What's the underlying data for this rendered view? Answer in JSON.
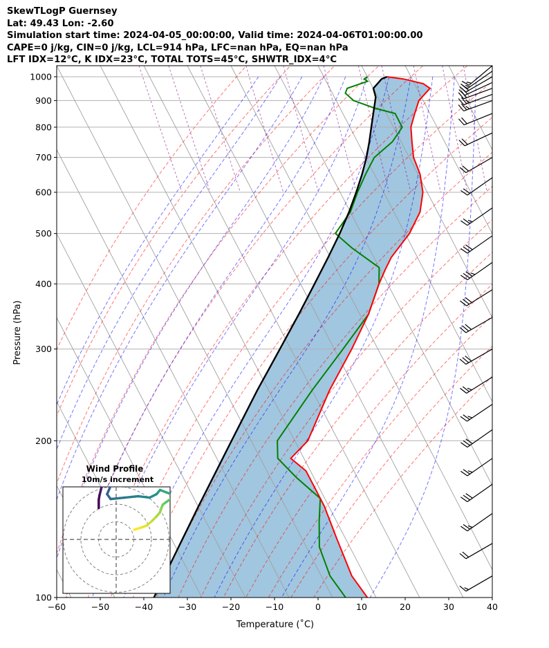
{
  "header": {
    "line1": "SkewTLogP Guernsey",
    "line2": "Lat: 49.43   Lon: -2.60",
    "line3": "Simulation start time: 2024-04-05_00:00:00, Valid time: 2024-04-06T01:00:00.00",
    "line4": "CAPE=0 j/kg, CIN=0 j/kg, LCL=914 hPa, LFC=nan hPa, EQ=nan hPa",
    "line5": "LFT IDX=12$^\\circ$C, K IDX=23$^\\circ$C, TOTAL TOTS=45$^\\circ$C, SHWTR_IDX=4$^\\circ$C",
    "line5_display": "LFT IDX=12°C, K IDX=23°C, TOTAL TOTS=45°C, SHWTR_IDX=4°C"
  },
  "colors": {
    "temperature": "#ff0000",
    "dewpoint": "#008000",
    "parcel": "#000000",
    "fill": "#a1c6df",
    "dry_adiabat": "#ff0000",
    "moist_adiabat": "#0000ff",
    "mixing_ratio": "#800080",
    "isotherm": "#999999"
  },
  "chart_data": {
    "type": "skewt",
    "xlabel": "Temperature ($^\\circ$C)",
    "xlabel_display": "Temperature (˚C)",
    "ylabel": "Pressure (hPa)",
    "xlim": [
      -60,
      40
    ],
    "ylim": [
      1050,
      100
    ],
    "xticks": [
      -60,
      -50,
      -40,
      -30,
      -20,
      -10,
      0,
      10,
      20,
      30,
      40
    ],
    "yticks": [
      1000,
      900,
      800,
      700,
      600,
      500,
      400,
      300,
      200,
      100
    ],
    "skew_deg_per_decade": 62,
    "temperature": [
      [
        1000,
        14.5
      ],
      [
        990,
        18
      ],
      [
        970,
        22
      ],
      [
        950,
        23
      ],
      [
        900,
        19
      ],
      [
        850,
        16.5
      ],
      [
        800,
        14
      ],
      [
        750,
        12.5
      ],
      [
        700,
        11
      ],
      [
        650,
        10.5
      ],
      [
        600,
        9
      ],
      [
        550,
        6
      ],
      [
        500,
        1
      ],
      [
        450,
        -6
      ],
      [
        425,
        -9
      ],
      [
        400,
        -12
      ],
      [
        350,
        -18
      ],
      [
        300,
        -26
      ],
      [
        250,
        -36
      ],
      [
        200,
        -47
      ],
      [
        185,
        -53
      ],
      [
        175,
        -51
      ],
      [
        150,
        -51
      ],
      [
        130,
        -52
      ],
      [
        110,
        -53
      ],
      [
        100,
        -52
      ]
    ],
    "dewpoint": [
      [
        1000,
        10
      ],
      [
        990,
        9
      ],
      [
        980,
        9.5
      ],
      [
        950,
        4
      ],
      [
        930,
        3
      ],
      [
        900,
        4
      ],
      [
        870,
        8
      ],
      [
        850,
        12
      ],
      [
        800,
        12
      ],
      [
        750,
        8
      ],
      [
        700,
        2
      ],
      [
        650,
        -2
      ],
      [
        600,
        -6
      ],
      [
        550,
        -10
      ],
      [
        500,
        -16
      ],
      [
        470,
        -14
      ],
      [
        430,
        -10
      ],
      [
        400,
        -12
      ],
      [
        350,
        -18
      ],
      [
        300,
        -28
      ],
      [
        250,
        -40
      ],
      [
        200,
        -54
      ],
      [
        185,
        -56
      ],
      [
        170,
        -54
      ],
      [
        155,
        -51
      ],
      [
        140,
        -54
      ],
      [
        125,
        -57
      ],
      [
        110,
        -58
      ],
      [
        100,
        -57
      ]
    ],
    "parcel": [
      [
        1000,
        14.5
      ],
      [
        990,
        13
      ],
      [
        950,
        10
      ],
      [
        914,
        9.5
      ],
      [
        850,
        7
      ],
      [
        800,
        4.9
      ],
      [
        750,
        2.7
      ],
      [
        700,
        0.2
      ],
      [
        650,
        -2.8
      ],
      [
        600,
        -6.3
      ],
      [
        550,
        -10.3
      ],
      [
        500,
        -15
      ],
      [
        450,
        -20.5
      ],
      [
        400,
        -26.8
      ],
      [
        350,
        -34
      ],
      [
        300,
        -42.5
      ],
      [
        250,
        -52.6
      ],
      [
        200,
        -64.5
      ],
      [
        150,
        -79.8
      ],
      [
        100,
        -101
      ]
    ],
    "dry_adiabats_theta_C": [
      -20,
      -10,
      0,
      10,
      20,
      30,
      40,
      50,
      60,
      70,
      80,
      90,
      100,
      110,
      120,
      130
    ],
    "moist_adiabats_start_C": [
      -15,
      -10,
      -5,
      0,
      5,
      10,
      15,
      20,
      25,
      30,
      35
    ],
    "mixing_ratios_g_per_kg": [
      0.1,
      0.2,
      0.4,
      1,
      2,
      4,
      7,
      10,
      16,
      24,
      32
    ],
    "wind_barbs": [
      {
        "p": 1050,
        "speed_kt": 15,
        "dir_deg": 230
      },
      {
        "p": 1025,
        "speed_kt": 15,
        "dir_deg": 235
      },
      {
        "p": 1000,
        "speed_kt": 20,
        "dir_deg": 240
      },
      {
        "p": 975,
        "speed_kt": 20,
        "dir_deg": 245
      },
      {
        "p": 950,
        "speed_kt": 20,
        "dir_deg": 250
      },
      {
        "p": 925,
        "speed_kt": 25,
        "dir_deg": 250
      },
      {
        "p": 900,
        "speed_kt": 25,
        "dir_deg": 250
      },
      {
        "p": 850,
        "speed_kt": 20,
        "dir_deg": 248
      },
      {
        "p": 780,
        "speed_kt": 20,
        "dir_deg": 245
      },
      {
        "p": 700,
        "speed_kt": 20,
        "dir_deg": 240
      },
      {
        "p": 640,
        "speed_kt": 20,
        "dir_deg": 235
      },
      {
        "p": 560,
        "speed_kt": 25,
        "dir_deg": 235
      },
      {
        "p": 495,
        "speed_kt": 30,
        "dir_deg": 235
      },
      {
        "p": 440,
        "speed_kt": 35,
        "dir_deg": 235
      },
      {
        "p": 390,
        "speed_kt": 30,
        "dir_deg": 238
      },
      {
        "p": 345,
        "speed_kt": 30,
        "dir_deg": 240
      },
      {
        "p": 300,
        "speed_kt": 30,
        "dir_deg": 240
      },
      {
        "p": 265,
        "speed_kt": 25,
        "dir_deg": 238
      },
      {
        "p": 235,
        "speed_kt": 25,
        "dir_deg": 236
      },
      {
        "p": 210,
        "speed_kt": 30,
        "dir_deg": 235
      },
      {
        "p": 185,
        "speed_kt": 25,
        "dir_deg": 235
      },
      {
        "p": 165,
        "speed_kt": 30,
        "dir_deg": 235
      },
      {
        "p": 145,
        "speed_kt": 25,
        "dir_deg": 235
      },
      {
        "p": 127,
        "speed_kt": 20,
        "dir_deg": 240
      },
      {
        "p": 110,
        "speed_kt": 15,
        "dir_deg": 240
      }
    ],
    "hodograph": {
      "title": "Wind Profile",
      "subtitle": "10m/s increment",
      "points": [
        [
          2.6,
          1.4
        ],
        [
          3.6,
          1.7
        ],
        [
          4.4,
          2.0
        ],
        [
          5.2,
          2.7
        ],
        [
          5.8,
          3.3
        ],
        [
          6.3,
          3.9
        ],
        [
          6.5,
          4.5
        ],
        [
          6.7,
          5.0
        ],
        [
          7.1,
          5.3
        ],
        [
          8.1,
          6.0
        ],
        [
          8.8,
          6.5
        ],
        [
          8.4,
          6.3
        ],
        [
          6.3,
          7.1
        ],
        [
          5.8,
          6.5
        ],
        [
          4.8,
          6.0
        ],
        [
          3.2,
          6.2
        ],
        [
          1.2,
          6.0
        ],
        [
          -0.8,
          5.8
        ],
        [
          -1.3,
          6.5
        ],
        [
          -0.7,
          7.9
        ],
        [
          -0.2,
          8.5
        ],
        [
          -0.4,
          8.9
        ],
        [
          -1.0,
          8.9
        ],
        [
          -1.7,
          8.2
        ],
        [
          -2.1,
          7.5
        ],
        [
          -2.4,
          6.3
        ],
        [
          -2.5,
          5.7
        ],
        [
          -2.5,
          4.5
        ]
      ]
    }
  }
}
